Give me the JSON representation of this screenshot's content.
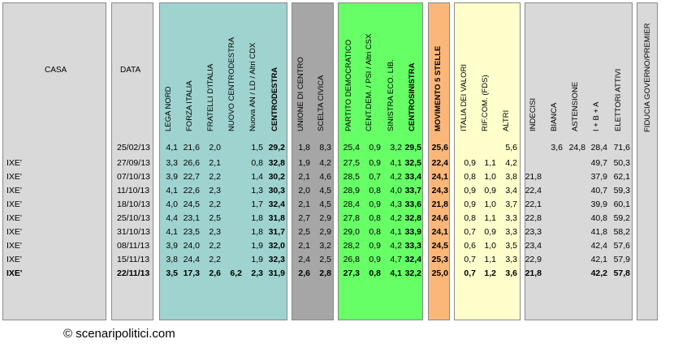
{
  "title_headers": {
    "casa": "CASA",
    "data": "DATA",
    "fiducia": "FIDUCIA GOVERNO/PREMIER"
  },
  "columns": [
    {
      "key": "lega",
      "label": "LEGA NORD",
      "bold": false
    },
    {
      "key": "fi",
      "label": "FORZA ITALIA",
      "bold": false
    },
    {
      "key": "fdi",
      "label": "FRATELLI D'ITALIA",
      "bold": false
    },
    {
      "key": "ncd",
      "label": "NUOVO CENTRODESTRA",
      "bold": false
    },
    {
      "key": "altri_cdx",
      "label": "Nuova AN / LD / Altri CDX",
      "bold": false
    },
    {
      "key": "cdx",
      "label": "CENTRODESTRA",
      "bold": true
    },
    {
      "key": "udc",
      "label": "UNIONE DI CENTRO",
      "bold": false
    },
    {
      "key": "sc",
      "label": "SCELTA CIVICA",
      "bold": false
    },
    {
      "key": "pd",
      "label": "PARTITO DEMOCRATICO",
      "bold": false
    },
    {
      "key": "cd",
      "label": "CENT.DEM. / PSI / Altri CSX",
      "bold": false
    },
    {
      "key": "sel",
      "label": "SINISTRA ECO. LIB.",
      "bold": false
    },
    {
      "key": "csx",
      "label": "CENTROSINISTRA",
      "bold": true
    },
    {
      "key": "m5s",
      "label": "MOVIMENTO 5 STELLE",
      "bold": true
    },
    {
      "key": "idv",
      "label": "ITALIA DEI VALORI",
      "bold": false
    },
    {
      "key": "rif",
      "label": "RIF.COM. (FDS)",
      "bold": false
    },
    {
      "key": "altri",
      "label": "ALTRI",
      "bold": false
    },
    {
      "key": "indecisi",
      "label": "INDECISI",
      "bold": false
    },
    {
      "key": "bianca",
      "label": "BIANCA",
      "bold": false
    },
    {
      "key": "astensione",
      "label": "ASTENSIONE",
      "bold": false
    },
    {
      "key": "iba",
      "label": "I + B + A",
      "bold": false
    },
    {
      "key": "attivi",
      "label": "ELETTORI ATTIVI",
      "bold": false
    }
  ],
  "chart_data": {
    "type": "table",
    "rows": [
      {
        "casa": "",
        "data": "25/02/13",
        "bold": false,
        "values": [
          "4,1",
          "21,6",
          "2,0",
          "",
          "1,5",
          "29,2",
          "1,8",
          "8,3",
          "25,4",
          "0,9",
          "3,2",
          "29,5",
          "25,6",
          "",
          "",
          "5,6",
          "",
          "3,6",
          "24,8",
          "28,4",
          "71,6"
        ]
      },
      {
        "casa": "IXE'",
        "data": "27/09/13",
        "bold": false,
        "values": [
          "3,3",
          "26,6",
          "2,1",
          "",
          "0,8",
          "32,8",
          "1,9",
          "4,2",
          "27,5",
          "0,9",
          "4,1",
          "32,5",
          "22,4",
          "0,9",
          "1,1",
          "4,2",
          "",
          "",
          "",
          "49,7",
          "50,3"
        ]
      },
      {
        "casa": "IXE'",
        "data": "07/10/13",
        "bold": false,
        "values": [
          "3,9",
          "22,7",
          "2,2",
          "",
          "1,4",
          "30,2",
          "2,1",
          "4,6",
          "28,5",
          "0,7",
          "4,2",
          "33,4",
          "24,1",
          "0,8",
          "1,0",
          "3,8",
          "21,8",
          "",
          "",
          "37,9",
          "62,1"
        ]
      },
      {
        "casa": "IXE'",
        "data": "11/10/13",
        "bold": false,
        "values": [
          "4,1",
          "22,6",
          "2,3",
          "",
          "1,3",
          "30,3",
          "2,0",
          "4,5",
          "28,9",
          "0,8",
          "4,0",
          "33,7",
          "24,3",
          "0,9",
          "0,9",
          "3,4",
          "22,4",
          "",
          "",
          "40,7",
          "59,3"
        ]
      },
      {
        "casa": "IXE'",
        "data": "18/10/13",
        "bold": false,
        "values": [
          "4,0",
          "24,5",
          "2,2",
          "",
          "1,7",
          "32,4",
          "2,1",
          "4,5",
          "28,4",
          "0,9",
          "4,3",
          "33,6",
          "21,8",
          "0,9",
          "1,0",
          "3,7",
          "22,1",
          "",
          "",
          "39,9",
          "60,1"
        ]
      },
      {
        "casa": "IXE'",
        "data": "25/10/13",
        "bold": false,
        "values": [
          "4,4",
          "23,1",
          "2,5",
          "",
          "1,8",
          "31,8",
          "2,7",
          "2,9",
          "27,8",
          "0,8",
          "4,2",
          "32,8",
          "24,6",
          "0,8",
          "1,1",
          "3,3",
          "22,8",
          "",
          "",
          "40,8",
          "59,2"
        ]
      },
      {
        "casa": "IXE'",
        "data": "31/10/13",
        "bold": false,
        "values": [
          "4,1",
          "23,5",
          "2,3",
          "",
          "1,8",
          "31,7",
          "2,5",
          "2,9",
          "29,0",
          "0,8",
          "4,1",
          "33,9",
          "24,1",
          "0,7",
          "0,9",
          "3,3",
          "23,3",
          "",
          "",
          "41,8",
          "58,2"
        ]
      },
      {
        "casa": "IXE'",
        "data": "08/11/13",
        "bold": false,
        "values": [
          "3,9",
          "24,0",
          "2,2",
          "",
          "1,9",
          "32,0",
          "2,1",
          "3,2",
          "28,2",
          "0,9",
          "4,2",
          "33,3",
          "24,5",
          "0,6",
          "1,0",
          "3,5",
          "23,4",
          "",
          "",
          "42,4",
          "57,6"
        ]
      },
      {
        "casa": "IXE'",
        "data": "15/11/13",
        "bold": false,
        "values": [
          "3,8",
          "24,4",
          "2,2",
          "",
          "1,9",
          "32,3",
          "2,4",
          "2,5",
          "26,8",
          "0,9",
          "4,7",
          "32,4",
          "25,3",
          "0,7",
          "1,1",
          "3,3",
          "22,9",
          "",
          "",
          "42,1",
          "57,9"
        ]
      },
      {
        "casa": "IXE'",
        "data": "22/11/13",
        "bold": true,
        "values": [
          "3,5",
          "17,3",
          "2,6",
          "6,2",
          "2,3",
          "31,9",
          "2,6",
          "2,8",
          "27,3",
          "0,8",
          "4,1",
          "32,2",
          "25,0",
          "0,7",
          "1,2",
          "3,6",
          "21,8",
          "",
          "",
          "42,2",
          "57,8"
        ]
      }
    ]
  },
  "colors": {
    "band_gray": "#d9d9d9",
    "band_teal": "#9fd3cf",
    "band_dgray": "#a6a6a6",
    "band_green": "#66ff66",
    "band_orange": "#fbb77a",
    "band_yellow": "#ffffcc"
  },
  "footer": "© scenaripolitici.com"
}
